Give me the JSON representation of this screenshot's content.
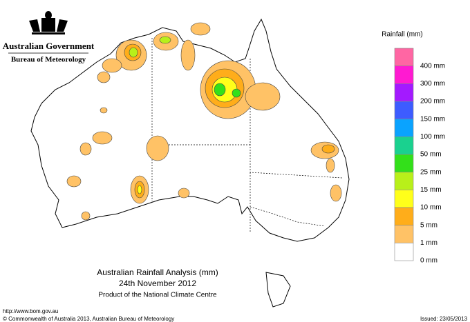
{
  "header": {
    "government": "Australian Government",
    "agency": "Bureau of Meteorology"
  },
  "legend": {
    "title": "Rainfall (mm)",
    "items": [
      {
        "label": "400 mm",
        "color": "#ff66a3"
      },
      {
        "label": "300 mm",
        "color": "#ff1ad1"
      },
      {
        "label": "200 mm",
        "color": "#a31aff"
      },
      {
        "label": "150 mm",
        "color": "#3d5cff"
      },
      {
        "label": "100 mm",
        "color": "#0aa3ff"
      },
      {
        "label": "50 mm",
        "color": "#1ad18f"
      },
      {
        "label": "25 mm",
        "color": "#33e01a"
      },
      {
        "label": "15 mm",
        "color": "#b8f01a"
      },
      {
        "label": "10 mm",
        "color": "#ffff1a"
      },
      {
        "label": "5 mm",
        "color": "#ffad1a"
      },
      {
        "label": "1 mm",
        "color": "#ffc266"
      },
      {
        "label": "0 mm",
        "color": "#ffffff"
      }
    ]
  },
  "title": {
    "line1": "Australian Rainfall Analysis (mm)",
    "line2": "24th November 2012",
    "line3": "Product of the National Climate Centre"
  },
  "footer": {
    "url": "http://www.bom.gov.au",
    "copyright": "© Commonwealth of Australia 2013, Australian Bureau of Meteorology",
    "issued": "Issued: 23/05/2013"
  }
}
